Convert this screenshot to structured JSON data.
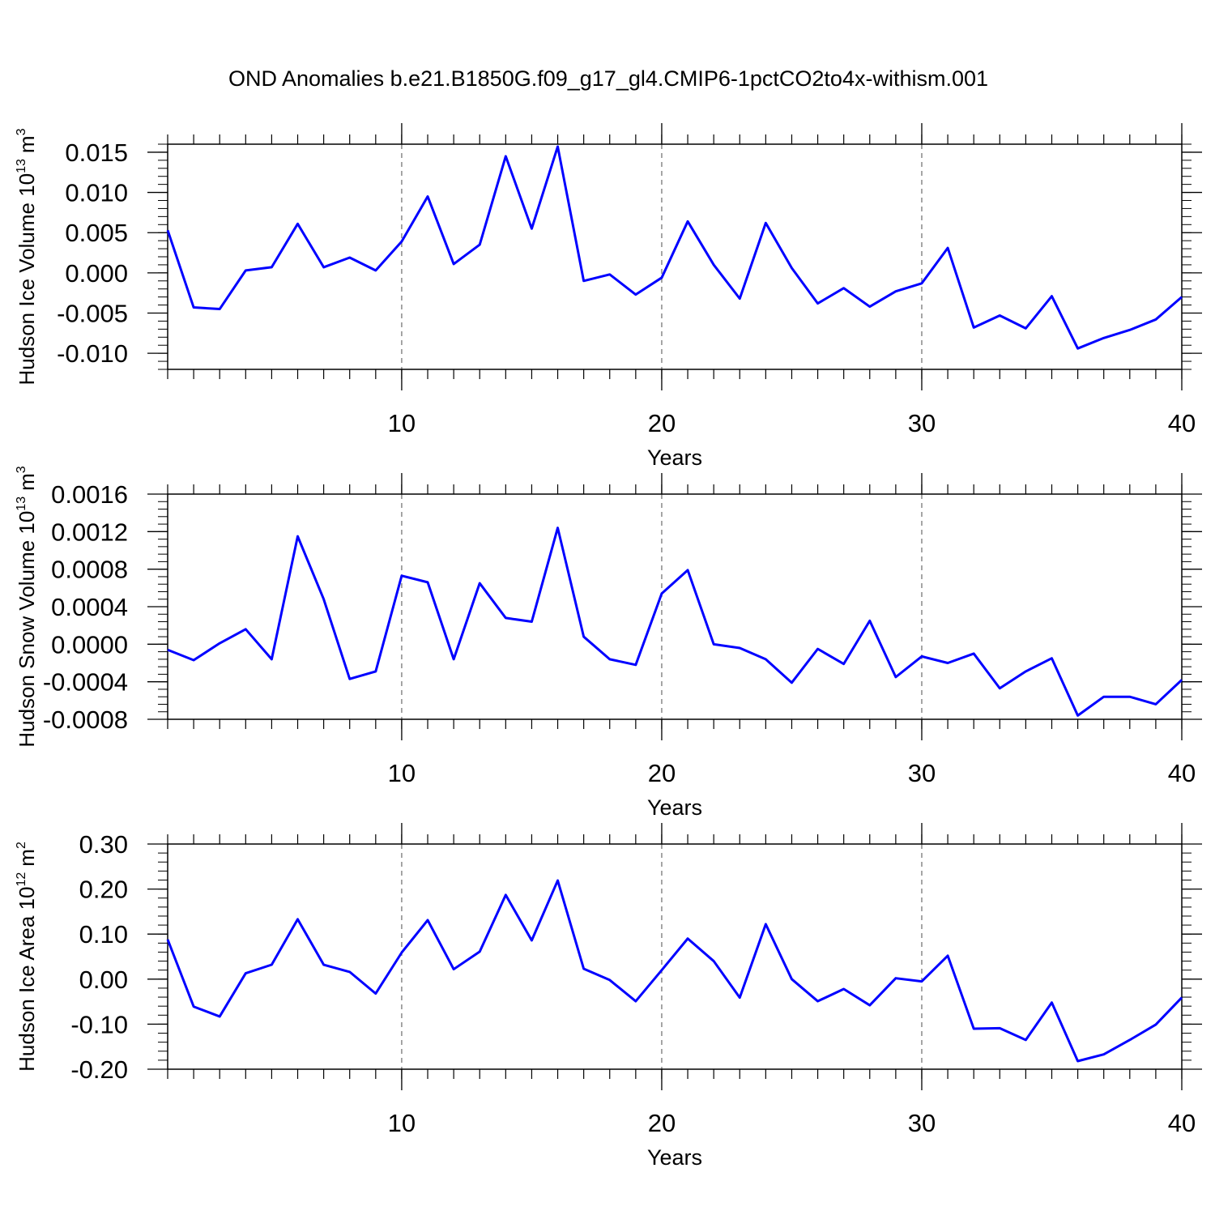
{
  "title": "OND Anomalies b.e21.B1850G.f09_g17_gl4.CMIP6-1pctCO2to4x-withism.001",
  "chart_data": [
    {
      "type": "line",
      "color": "#0000ff",
      "xlabel": "Years",
      "grid": true,
      "ylabel": {
        "text": "Hudson Ice Volume 10",
        "exp": "13",
        "unit": "m",
        "unit_exp": "3"
      },
      "xlim": [
        1,
        40
      ],
      "xticks": [
        10,
        20,
        30,
        40
      ],
      "ylim": [
        -0.012,
        0.016
      ],
      "yticks": [
        0.015,
        {
          "value": 0.01,
          "label": "0.010"
        },
        0.005,
        {
          "value": 0,
          "label": "0.000"
        },
        -0.005,
        {
          "value": -0.01,
          "label": "-0.010"
        }
      ],
      "x": [
        1,
        2,
        3,
        4,
        5,
        6,
        7,
        8,
        9,
        10,
        11,
        12,
        13,
        14,
        15,
        16,
        17,
        18,
        19,
        20,
        21,
        22,
        23,
        24,
        25,
        26,
        27,
        28,
        29,
        30,
        31,
        32,
        33,
        34,
        35,
        36,
        37,
        38,
        39,
        40
      ],
      "values": [
        0.0053,
        -0.0043,
        -0.0045,
        0.0003,
        0.0007,
        0.0061,
        0.0007,
        0.0019,
        0.0003,
        0.0039,
        0.0095,
        0.0011,
        0.0035,
        0.0145,
        0.0055,
        0.0157,
        -0.001,
        -0.0002,
        -0.0027,
        -0.0006,
        0.0064,
        0.001,
        -0.0032,
        0.0062,
        0.0006,
        -0.0038,
        -0.0019,
        -0.0042,
        -0.0023,
        -0.0013,
        0.0031,
        -0.0068,
        -0.0053,
        -0.0069,
        -0.0029,
        -0.0094,
        -0.0081,
        -0.0071,
        -0.0058,
        -0.003
      ]
    },
    {
      "type": "line",
      "color": "#0000ff",
      "xlabel": "Years",
      "grid": true,
      "ylabel": {
        "text": "Hudson Snow Volume 10",
        "exp": "13",
        "unit": "m",
        "unit_exp": "3"
      },
      "xlim": [
        1,
        40
      ],
      "xticks": [
        10,
        20,
        30,
        40
      ],
      "ylim": [
        -0.0008,
        0.0016
      ],
      "yticks": [
        0.0016,
        0.0012,
        {
          "value": 0.0008,
          "label": "0.0008"
        },
        {
          "value": 0.0004,
          "label": "0.0004"
        },
        {
          "value": 0,
          "label": "0.0000"
        },
        {
          "value": -0.0004,
          "label": "-0.0004"
        },
        {
          "value": -0.0008,
          "label": "-0.0008"
        }
      ],
      "x": [
        1,
        2,
        3,
        4,
        5,
        6,
        7,
        8,
        9,
        10,
        11,
        12,
        13,
        14,
        15,
        16,
        17,
        18,
        19,
        20,
        21,
        22,
        23,
        24,
        25,
        26,
        27,
        28,
        29,
        30,
        31,
        32,
        33,
        34,
        35,
        36,
        37,
        38,
        39,
        40
      ],
      "values": [
        -6e-05,
        -0.00017,
        1e-05,
        0.00016,
        -0.00016,
        0.00115,
        0.00048,
        -0.00037,
        -0.00029,
        0.00073,
        0.00066,
        -0.00016,
        0.00065,
        0.00028,
        0.00024,
        0.00124,
        8e-05,
        -0.00016,
        -0.00022,
        0.00054,
        0.00079,
        0,
        -4e-05,
        -0.00016,
        -0.00041,
        -5e-05,
        -0.00021,
        0.00025,
        -0.00035,
        -0.00013,
        -0.0002,
        -0.0001,
        -0.00047,
        -0.00029,
        -0.00015,
        -0.00076,
        -0.00056,
        -0.00056,
        -0.00064,
        -0.00038
      ]
    },
    {
      "type": "line",
      "color": "#0000ff",
      "xlabel": "Years",
      "grid": true,
      "ylabel": {
        "text": "Hudson Ice Area 10",
        "exp": "12",
        "unit": "m",
        "unit_exp": "2"
      },
      "xlim": [
        1,
        40
      ],
      "xticks": [
        10,
        20,
        30,
        40
      ],
      "ylim": [
        -0.2,
        0.3
      ],
      "yticks": [
        {
          "value": 0.3,
          "label": "0.30"
        },
        {
          "value": 0.2,
          "label": "0.20"
        },
        {
          "value": 0.1,
          "label": "0.10"
        },
        {
          "value": 0,
          "label": "0.00"
        },
        {
          "value": -0.1,
          "label": "-0.10"
        },
        {
          "value": -0.2,
          "label": "-0.20"
        }
      ],
      "x": [
        1,
        2,
        3,
        4,
        5,
        6,
        7,
        8,
        9,
        10,
        11,
        12,
        13,
        14,
        15,
        16,
        17,
        18,
        19,
        20,
        21,
        22,
        23,
        24,
        25,
        26,
        27,
        28,
        29,
        30,
        31,
        32,
        33,
        34,
        35,
        36,
        37,
        38,
        39,
        40
      ],
      "values": [
        0.088,
        -0.061,
        -0.083,
        0.013,
        0.032,
        0.133,
        0.032,
        0.016,
        -0.032,
        0.059,
        0.131,
        0.022,
        0.061,
        0.187,
        0.086,
        0.219,
        0.023,
        -0.002,
        -0.049,
        0.02,
        0.09,
        0.04,
        -0.041,
        0.122,
        0,
        -0.049,
        -0.022,
        -0.058,
        0.002,
        -0.005,
        0.052,
        -0.11,
        -0.109,
        -0.135,
        -0.052,
        -0.182,
        -0.167,
        -0.135,
        -0.101,
        -0.041
      ]
    }
  ]
}
